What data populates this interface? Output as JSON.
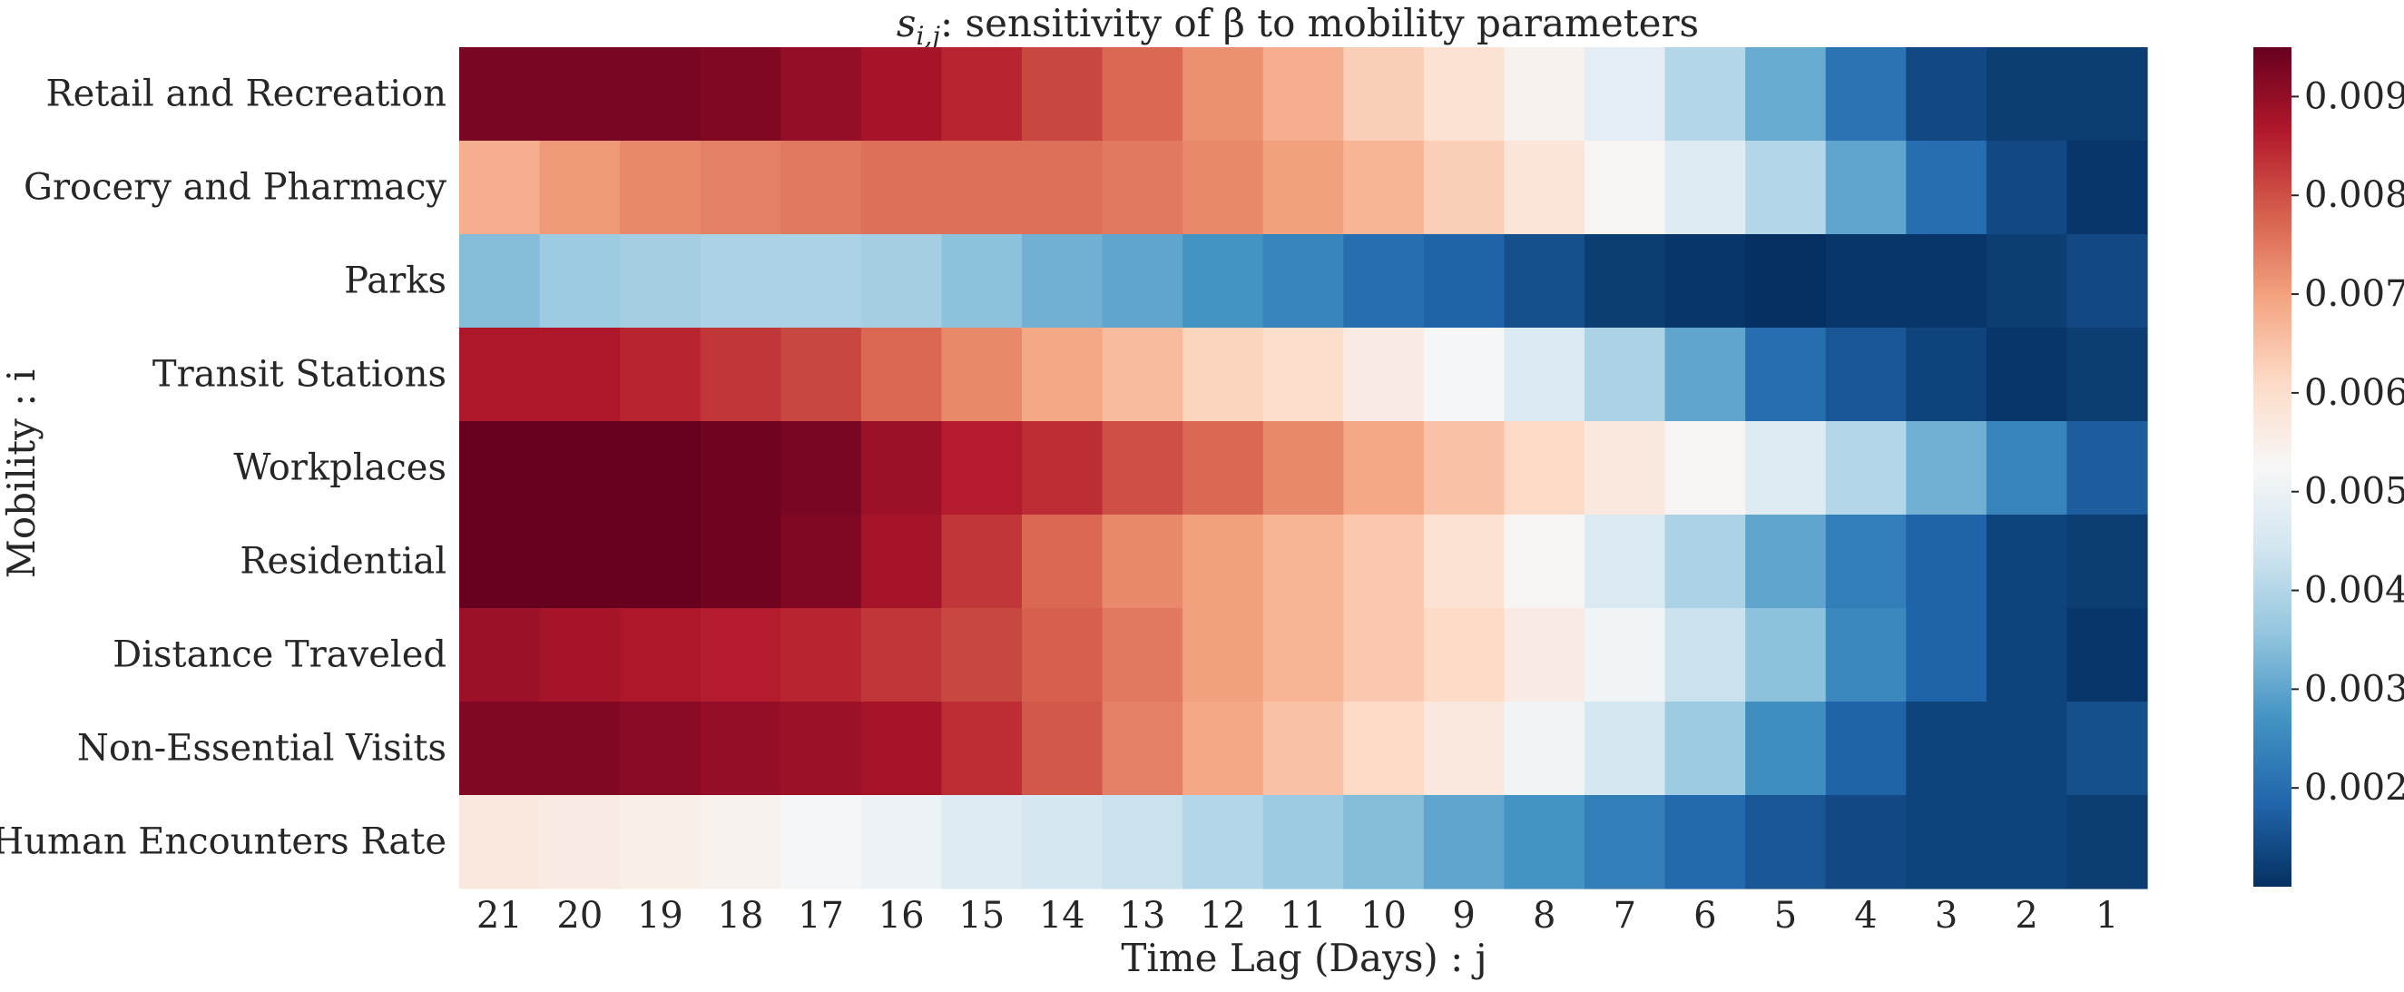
{
  "chart_data": {
    "type": "heatmap",
    "title_parts": {
      "main": "s",
      "sub": "i,j",
      "rest": ": sensitivity of β to mobility parameters"
    },
    "xlabel": "Time Lag (Days) : j",
    "ylabel": "Mobility : i",
    "x_categories": [
      "21",
      "20",
      "19",
      "18",
      "17",
      "16",
      "15",
      "14",
      "13",
      "12",
      "11",
      "10",
      "9",
      "8",
      "7",
      "6",
      "5",
      "4",
      "3",
      "2",
      "1"
    ],
    "y_categories": [
      "Retail and Recreation",
      "Grocery and Pharmacy",
      "Parks",
      "Transit Stations",
      "Workplaces",
      "Residential",
      "Distance Traveled",
      "Non-Essential Visits",
      "Human Encounters Rate"
    ],
    "values": [
      [
        0.0093,
        0.0093,
        0.0093,
        0.0092,
        0.009,
        0.0088,
        0.0085,
        0.0081,
        0.0077,
        0.0072,
        0.0068,
        0.0063,
        0.0059,
        0.0054,
        0.0048,
        0.004,
        0.0031,
        0.0021,
        0.0014,
        0.0012,
        0.0012
      ],
      [
        0.0068,
        0.0071,
        0.0073,
        0.0074,
        0.0075,
        0.0076,
        0.0076,
        0.0076,
        0.0075,
        0.0073,
        0.007,
        0.0067,
        0.0063,
        0.0058,
        0.0053,
        0.0047,
        0.004,
        0.003,
        0.002,
        0.0014,
        0.0011
      ],
      [
        0.0034,
        0.0037,
        0.0038,
        0.0039,
        0.0039,
        0.0038,
        0.0035,
        0.0032,
        0.003,
        0.0027,
        0.0024,
        0.002,
        0.0018,
        0.0015,
        0.0012,
        0.0011,
        0.001,
        0.0011,
        0.0011,
        0.0012,
        0.0014
      ],
      [
        0.0087,
        0.0087,
        0.0085,
        0.0083,
        0.0081,
        0.0077,
        0.0073,
        0.0069,
        0.0066,
        0.0062,
        0.006,
        0.0056,
        0.0052,
        0.0046,
        0.0039,
        0.003,
        0.002,
        0.0016,
        0.0013,
        0.0011,
        0.0012
      ],
      [
        0.0095,
        0.0095,
        0.0095,
        0.0094,
        0.0093,
        0.0089,
        0.0086,
        0.0084,
        0.008,
        0.0077,
        0.0073,
        0.0069,
        0.0065,
        0.0061,
        0.0057,
        0.0053,
        0.0047,
        0.004,
        0.0032,
        0.0024,
        0.0017
      ],
      [
        0.0095,
        0.0095,
        0.0095,
        0.0094,
        0.0092,
        0.0088,
        0.0083,
        0.0077,
        0.0073,
        0.007,
        0.0067,
        0.0064,
        0.0059,
        0.0053,
        0.0046,
        0.0039,
        0.003,
        0.0023,
        0.0018,
        0.0013,
        0.0012
      ],
      [
        0.0089,
        0.0088,
        0.0087,
        0.0086,
        0.0085,
        0.0083,
        0.0081,
        0.0078,
        0.0075,
        0.007,
        0.0067,
        0.0064,
        0.0061,
        0.0056,
        0.0051,
        0.0043,
        0.0035,
        0.0025,
        0.0018,
        0.0013,
        0.0011
      ],
      [
        0.0092,
        0.0092,
        0.0091,
        0.009,
        0.0089,
        0.0088,
        0.0084,
        0.0079,
        0.0074,
        0.0069,
        0.0065,
        0.0061,
        0.0057,
        0.0051,
        0.0045,
        0.0037,
        0.0026,
        0.0018,
        0.0013,
        0.0013,
        0.0015
      ],
      [
        0.0057,
        0.0056,
        0.0055,
        0.0054,
        0.0052,
        0.005,
        0.0047,
        0.0045,
        0.0043,
        0.004,
        0.0037,
        0.0034,
        0.003,
        0.0027,
        0.0023,
        0.0019,
        0.0016,
        0.0014,
        0.0013,
        0.0013,
        0.0012
      ]
    ],
    "zlim": [
      0.001,
      0.0095
    ],
    "colorbar": {
      "position": "right",
      "ticks": [
        0.002,
        0.003,
        0.004,
        0.005,
        0.006,
        0.007,
        0.008,
        0.009
      ],
      "tick_labels": [
        "0.002",
        "0.003",
        "0.004",
        "0.005",
        "0.006",
        "0.007",
        "0.008",
        "0.009"
      ]
    },
    "colormap": {
      "name": "RdBu_r",
      "stops": [
        "#053061",
        "#2166ac",
        "#4393c3",
        "#92c5de",
        "#d1e5f0",
        "#f7f7f7",
        "#fddbc7",
        "#f4a582",
        "#d6604d",
        "#b2182b",
        "#67001f"
      ]
    },
    "grid": false
  }
}
